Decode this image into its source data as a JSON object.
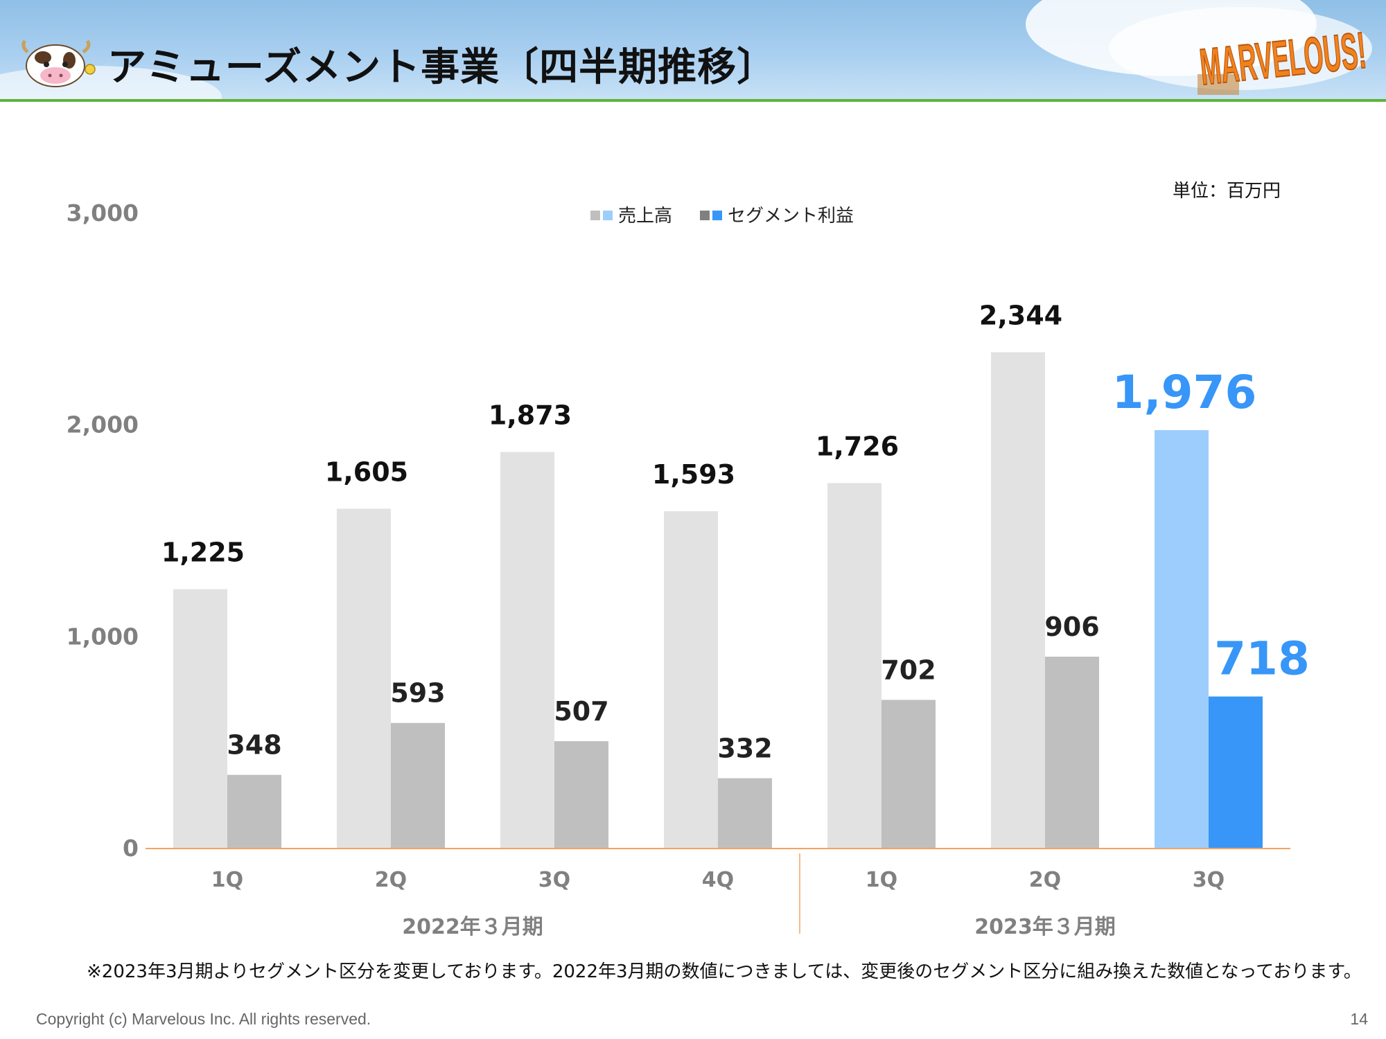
{
  "header": {
    "title": "アミューズメント事業〔四半期推移〕",
    "logo_text": "MARVELOUS!"
  },
  "unit_note": "単位：百万円",
  "chart_data": {
    "type": "bar",
    "ylim": [
      0,
      3000
    ],
    "yticks": [
      0,
      1000,
      2000,
      3000
    ],
    "ytick_labels": [
      "0",
      "1,000",
      "2,000",
      "3,000"
    ],
    "categories": [
      "1Q",
      "2Q",
      "3Q",
      "4Q",
      "1Q",
      "2Q",
      "3Q"
    ],
    "groups": [
      {
        "label": "2022年３月期",
        "span": [
          0,
          3
        ]
      },
      {
        "label": "2023年３月期",
        "span": [
          4,
          6
        ]
      }
    ],
    "legend": [
      {
        "label": "売上高",
        "colors": [
          "#bfbfbf",
          "#9dcdfc"
        ]
      },
      {
        "label": "セグメント利益",
        "colors": [
          "#808080",
          "#3796f7"
        ]
      }
    ],
    "series": [
      {
        "name": "売上高",
        "values": [
          1225,
          1605,
          1873,
          1593,
          1726,
          2344,
          1976
        ],
        "labels": [
          "1,225",
          "1,605",
          "1,873",
          "1,593",
          "1,726",
          "2,344",
          "1,976"
        ]
      },
      {
        "name": "セグメント利益",
        "values": [
          348,
          593,
          507,
          332,
          702,
          906,
          718
        ],
        "labels": [
          "348",
          "593",
          "507",
          "332",
          "702",
          "906",
          "718"
        ]
      }
    ],
    "colors": {
      "sales": "#e3e2e3",
      "profit": "#bfbfbf",
      "sales_highlight": "#9dcdfc",
      "profit_highlight": "#3796f7",
      "label_highlight": "#3796f7",
      "axis_line": "#f4a460",
      "tick_text": "#808080"
    },
    "highlight_index": 6
  },
  "footnote": "※2023年3月期よりセグメント区分を変更しております。2022年3月期の数値につきましては、変更後のセグメント区分に組み換えた数値となっております。",
  "copyright": "Copyright (c) Marvelous Inc. All rights reserved.",
  "page_number": "14"
}
